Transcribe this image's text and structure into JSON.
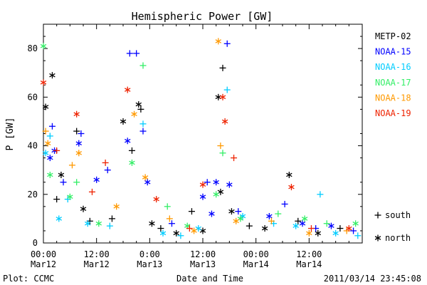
{
  "chart_data": {
    "type": "scatter",
    "title": "Hemispheric Power [GW]",
    "xlabel": "Date and Time",
    "ylabel": "P [GW]",
    "ylim": [
      0,
      90
    ],
    "xlim": [
      "2011-03-12T00:00",
      "2011-03-15T00:00"
    ],
    "y_ticks": [
      "0",
      "20",
      "40",
      "60",
      "80"
    ],
    "x_ticks": [
      {
        "time": "00:00",
        "date": "Mar12",
        "at": "2011-03-12T00:00"
      },
      {
        "time": "12:00",
        "date": "Mar12",
        "at": "2011-03-12T12:00"
      },
      {
        "time": "0:00",
        "date": "Mar13",
        "at": "2011-03-13T00:00"
      },
      {
        "time": "12:00",
        "date": "Mar13",
        "at": "2011-03-13T12:00"
      },
      {
        "time": "00:00",
        "date": "Mar14",
        "at": "2011-03-14T00:00"
      },
      {
        "time": "12:00",
        "date": "Mar14",
        "at": "2011-03-14T12:00"
      }
    ],
    "legend_position": "right",
    "marker_legend": [
      {
        "marker": "+",
        "label": "south"
      },
      {
        "marker": "*",
        "label": "north"
      }
    ],
    "series": [
      {
        "name": "METP-02",
        "color": "#000000",
        "points": [
          {
            "x": "2011-03-12T00:30",
            "y": 56,
            "m": "*"
          },
          {
            "x": "2011-03-12T02:00",
            "y": 69,
            "m": "*"
          },
          {
            "x": "2011-03-12T03:00",
            "y": 18,
            "m": "+"
          },
          {
            "x": "2011-03-12T04:00",
            "y": 28,
            "m": "*"
          },
          {
            "x": "2011-03-12T07:30",
            "y": 46,
            "m": "+"
          },
          {
            "x": "2011-03-12T09:00",
            "y": 14,
            "m": "*"
          },
          {
            "x": "2011-03-12T10:30",
            "y": 9,
            "m": "+"
          },
          {
            "x": "2011-03-12T15:30",
            "y": 10,
            "m": "+"
          },
          {
            "x": "2011-03-12T18:00",
            "y": 50,
            "m": "*"
          },
          {
            "x": "2011-03-12T20:00",
            "y": 38,
            "m": "+"
          },
          {
            "x": "2011-03-12T21:30",
            "y": 57,
            "m": "*"
          },
          {
            "x": "2011-03-12T22:00",
            "y": 55,
            "m": "+"
          },
          {
            "x": "2011-03-13T00:30",
            "y": 8,
            "m": "*"
          },
          {
            "x": "2011-03-13T02:30",
            "y": 6,
            "m": "+"
          },
          {
            "x": "2011-03-13T06:00",
            "y": 4,
            "m": "*"
          },
          {
            "x": "2011-03-13T09:30",
            "y": 13,
            "m": "+"
          },
          {
            "x": "2011-03-13T12:00",
            "y": 5,
            "m": "*"
          },
          {
            "x": "2011-03-13T15:30",
            "y": 60,
            "m": "*"
          },
          {
            "x": "2011-03-13T16:00",
            "y": 21,
            "m": "*"
          },
          {
            "x": "2011-03-13T16:30",
            "y": 72,
            "m": "+"
          },
          {
            "x": "2011-03-13T18:30",
            "y": 13,
            "m": "*"
          },
          {
            "x": "2011-03-13T22:30",
            "y": 7,
            "m": "+"
          },
          {
            "x": "2011-03-14T02:00",
            "y": 6,
            "m": "*"
          },
          {
            "x": "2011-03-14T07:30",
            "y": 28,
            "m": "*"
          },
          {
            "x": "2011-03-14T09:30",
            "y": 9,
            "m": "+"
          },
          {
            "x": "2011-03-14T14:00",
            "y": 4,
            "m": "*"
          },
          {
            "x": "2011-03-14T19:00",
            "y": 6,
            "m": "+"
          }
        ]
      },
      {
        "name": "NOAA-15",
        "color": "#0000ff",
        "points": [
          {
            "x": "2011-03-12T01:30",
            "y": 35,
            "m": "*"
          },
          {
            "x": "2011-03-12T02:00",
            "y": 48,
            "m": "+"
          },
          {
            "x": "2011-03-12T02:30",
            "y": 38,
            "m": "*"
          },
          {
            "x": "2011-03-12T04:30",
            "y": 25,
            "m": "+"
          },
          {
            "x": "2011-03-12T08:00",
            "y": 41,
            "m": "*"
          },
          {
            "x": "2011-03-12T08:30",
            "y": 45,
            "m": "+"
          },
          {
            "x": "2011-03-12T12:00",
            "y": 26,
            "m": "*"
          },
          {
            "x": "2011-03-12T14:30",
            "y": 30,
            "m": "+"
          },
          {
            "x": "2011-03-12T19:00",
            "y": 42,
            "m": "*"
          },
          {
            "x": "2011-03-12T19:30",
            "y": 78,
            "m": "+"
          },
          {
            "x": "2011-03-12T21:00",
            "y": 78,
            "m": "+"
          },
          {
            "x": "2011-03-12T22:30",
            "y": 46,
            "m": "+"
          },
          {
            "x": "2011-03-12T23:30",
            "y": 25,
            "m": "*"
          },
          {
            "x": "2011-03-13T05:00",
            "y": 8,
            "m": "+"
          },
          {
            "x": "2011-03-13T12:00",
            "y": 19,
            "m": "*"
          },
          {
            "x": "2011-03-13T13:00",
            "y": 25,
            "m": "+"
          },
          {
            "x": "2011-03-13T14:00",
            "y": 12,
            "m": "*"
          },
          {
            "x": "2011-03-13T15:00",
            "y": 25,
            "m": "*"
          },
          {
            "x": "2011-03-13T17:30",
            "y": 82,
            "m": "+"
          },
          {
            "x": "2011-03-13T18:00",
            "y": 24,
            "m": "*"
          },
          {
            "x": "2011-03-13T20:00",
            "y": 13,
            "m": "+"
          },
          {
            "x": "2011-03-14T03:00",
            "y": 11,
            "m": "*"
          },
          {
            "x": "2011-03-14T06:30",
            "y": 16,
            "m": "+"
          },
          {
            "x": "2011-03-14T10:30",
            "y": 8,
            "m": "*"
          },
          {
            "x": "2011-03-14T13:30",
            "y": 6,
            "m": "+"
          },
          {
            "x": "2011-03-14T17:00",
            "y": 7,
            "m": "*"
          },
          {
            "x": "2011-03-14T22:00",
            "y": 5,
            "m": "+"
          }
        ]
      },
      {
        "name": "NOAA-16",
        "color": "#00ccff",
        "points": [
          {
            "x": "2011-03-12T00:30",
            "y": 37,
            "m": "*"
          },
          {
            "x": "2011-03-12T01:30",
            "y": 44,
            "m": "+"
          },
          {
            "x": "2011-03-12T03:30",
            "y": 10,
            "m": "*"
          },
          {
            "x": "2011-03-12T05:30",
            "y": 18,
            "m": "+"
          },
          {
            "x": "2011-03-12T10:00",
            "y": 8,
            "m": "*"
          },
          {
            "x": "2011-03-12T15:00",
            "y": 7,
            "m": "+"
          },
          {
            "x": "2011-03-12T22:30",
            "y": 49,
            "m": "+"
          },
          {
            "x": "2011-03-13T03:00",
            "y": 4,
            "m": "*"
          },
          {
            "x": "2011-03-13T07:00",
            "y": 3,
            "m": "+"
          },
          {
            "x": "2011-03-13T11:00",
            "y": 6,
            "m": "*"
          },
          {
            "x": "2011-03-13T17:30",
            "y": 63,
            "m": "+"
          },
          {
            "x": "2011-03-13T21:00",
            "y": 11,
            "m": "*"
          },
          {
            "x": "2011-03-14T04:00",
            "y": 8,
            "m": "+"
          },
          {
            "x": "2011-03-14T09:00",
            "y": 7,
            "m": "*"
          },
          {
            "x": "2011-03-14T14:30",
            "y": 20,
            "m": "+"
          },
          {
            "x": "2011-03-14T18:00",
            "y": 4,
            "m": "*"
          },
          {
            "x": "2011-03-14T23:00",
            "y": 3,
            "m": "+"
          }
        ]
      },
      {
        "name": "NOAA-17",
        "color": "#33ee66",
        "points": [
          {
            "x": "2011-03-12T00:00",
            "y": 81,
            "m": "*"
          },
          {
            "x": "2011-03-12T01:30",
            "y": 28,
            "m": "*"
          },
          {
            "x": "2011-03-12T06:00",
            "y": 19,
            "m": "*"
          },
          {
            "x": "2011-03-12T07:30",
            "y": 25,
            "m": "+"
          },
          {
            "x": "2011-03-12T12:30",
            "y": 8,
            "m": "*"
          },
          {
            "x": "2011-03-12T20:00",
            "y": 33,
            "m": "*"
          },
          {
            "x": "2011-03-12T22:30",
            "y": 73,
            "m": "+"
          },
          {
            "x": "2011-03-13T04:00",
            "y": 15,
            "m": "+"
          },
          {
            "x": "2011-03-13T08:30",
            "y": 7,
            "m": "*"
          },
          {
            "x": "2011-03-13T15:00",
            "y": 20,
            "m": "*"
          },
          {
            "x": "2011-03-13T16:30",
            "y": 37,
            "m": "+"
          },
          {
            "x": "2011-03-13T20:30",
            "y": 10,
            "m": "*"
          },
          {
            "x": "2011-03-14T05:00",
            "y": 12,
            "m": "+"
          },
          {
            "x": "2011-03-14T11:00",
            "y": 10,
            "m": "*"
          },
          {
            "x": "2011-03-14T16:00",
            "y": 8,
            "m": "+"
          },
          {
            "x": "2011-03-14T22:30",
            "y": 8,
            "m": "*"
          }
        ]
      },
      {
        "name": "NOAA-18",
        "color": "#ff9900",
        "points": [
          {
            "x": "2011-03-12T00:30",
            "y": 46,
            "m": "+"
          },
          {
            "x": "2011-03-12T01:00",
            "y": 41,
            "m": "*"
          },
          {
            "x": "2011-03-12T06:30",
            "y": 32,
            "m": "+"
          },
          {
            "x": "2011-03-12T08:00",
            "y": 37,
            "m": "*"
          },
          {
            "x": "2011-03-12T16:30",
            "y": 15,
            "m": "*"
          },
          {
            "x": "2011-03-12T20:30",
            "y": 53,
            "m": "*"
          },
          {
            "x": "2011-03-12T23:00",
            "y": 27,
            "m": "*"
          },
          {
            "x": "2011-03-13T04:30",
            "y": 10,
            "m": "+"
          },
          {
            "x": "2011-03-13T10:00",
            "y": 5,
            "m": "*"
          },
          {
            "x": "2011-03-13T15:30",
            "y": 83,
            "m": "*"
          },
          {
            "x": "2011-03-13T16:00",
            "y": 40,
            "m": "+"
          },
          {
            "x": "2011-03-13T19:30",
            "y": 9,
            "m": "*"
          },
          {
            "x": "2011-03-14T03:30",
            "y": 9,
            "m": "+"
          },
          {
            "x": "2011-03-14T12:00",
            "y": 4,
            "m": "*"
          },
          {
            "x": "2011-03-14T20:30",
            "y": 5,
            "m": "+"
          }
        ]
      },
      {
        "name": "NOAA-19",
        "color": "#ee2200",
        "points": [
          {
            "x": "2011-03-12T00:00",
            "y": 66,
            "m": "*"
          },
          {
            "x": "2011-03-12T03:00",
            "y": 38,
            "m": "+"
          },
          {
            "x": "2011-03-12T07:30",
            "y": 53,
            "m": "*"
          },
          {
            "x": "2011-03-12T11:00",
            "y": 21,
            "m": "+"
          },
          {
            "x": "2011-03-12T14:00",
            "y": 33,
            "m": "+"
          },
          {
            "x": "2011-03-12T19:00",
            "y": 63,
            "m": "*"
          },
          {
            "x": "2011-03-13T01:30",
            "y": 18,
            "m": "*"
          },
          {
            "x": "2011-03-13T09:00",
            "y": 6,
            "m": "+"
          },
          {
            "x": "2011-03-13T12:00",
            "y": 24,
            "m": "*"
          },
          {
            "x": "2011-03-13T16:30",
            "y": 60,
            "m": "*"
          },
          {
            "x": "2011-03-13T17:00",
            "y": 50,
            "m": "*"
          },
          {
            "x": "2011-03-13T19:00",
            "y": 35,
            "m": "+"
          },
          {
            "x": "2011-03-14T08:00",
            "y": 23,
            "m": "*"
          },
          {
            "x": "2011-03-14T12:30",
            "y": 6,
            "m": "+"
          },
          {
            "x": "2011-03-14T21:00",
            "y": 6,
            "m": "*"
          }
        ]
      }
    ]
  },
  "footer": {
    "plot_credit": "Plot: CCMC",
    "timestamp": "2011/03/14 23:45:08"
  }
}
